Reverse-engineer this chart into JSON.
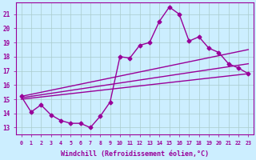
{
  "xlabel": "Windchill (Refroidissement éolien,°C)",
  "background_color": "#cceeff",
  "line_color": "#990099",
  "grid_color": "#aacccc",
  "x_ticks": [
    0,
    1,
    2,
    3,
    4,
    5,
    6,
    7,
    8,
    9,
    10,
    11,
    12,
    13,
    14,
    15,
    16,
    17,
    18,
    19,
    20,
    21,
    22,
    23
  ],
  "y_ticks": [
    13,
    14,
    15,
    16,
    17,
    18,
    19,
    20,
    21
  ],
  "ylim": [
    12.5,
    21.8
  ],
  "xlim": [
    -0.5,
    23.5
  ],
  "series1_x": [
    0,
    1,
    2,
    3,
    4,
    5,
    6,
    7,
    8,
    9,
    10,
    11,
    12,
    13,
    14,
    15,
    16,
    17,
    18,
    19,
    20,
    21,
    22,
    23
  ],
  "series1_y": [
    15.2,
    14.1,
    14.6,
    13.9,
    13.5,
    13.3,
    13.3,
    13.0,
    13.8,
    14.8,
    18.0,
    17.9,
    18.8,
    19.0,
    20.5,
    21.5,
    21.0,
    19.1,
    19.4,
    18.6,
    18.3,
    17.5,
    17.2,
    16.8
  ],
  "line2_x0": 0,
  "line2_y0": 15.0,
  "line2_x1": 23,
  "line2_y1": 16.8,
  "line3_x0": 0,
  "line3_y0": 15.1,
  "line3_x1": 23,
  "line3_y1": 17.5,
  "line4_x0": 0,
  "line4_y0": 15.2,
  "line4_x1": 23,
  "line4_y1": 18.5,
  "marker": "D",
  "markersize": 2.5,
  "linewidth": 1.0
}
